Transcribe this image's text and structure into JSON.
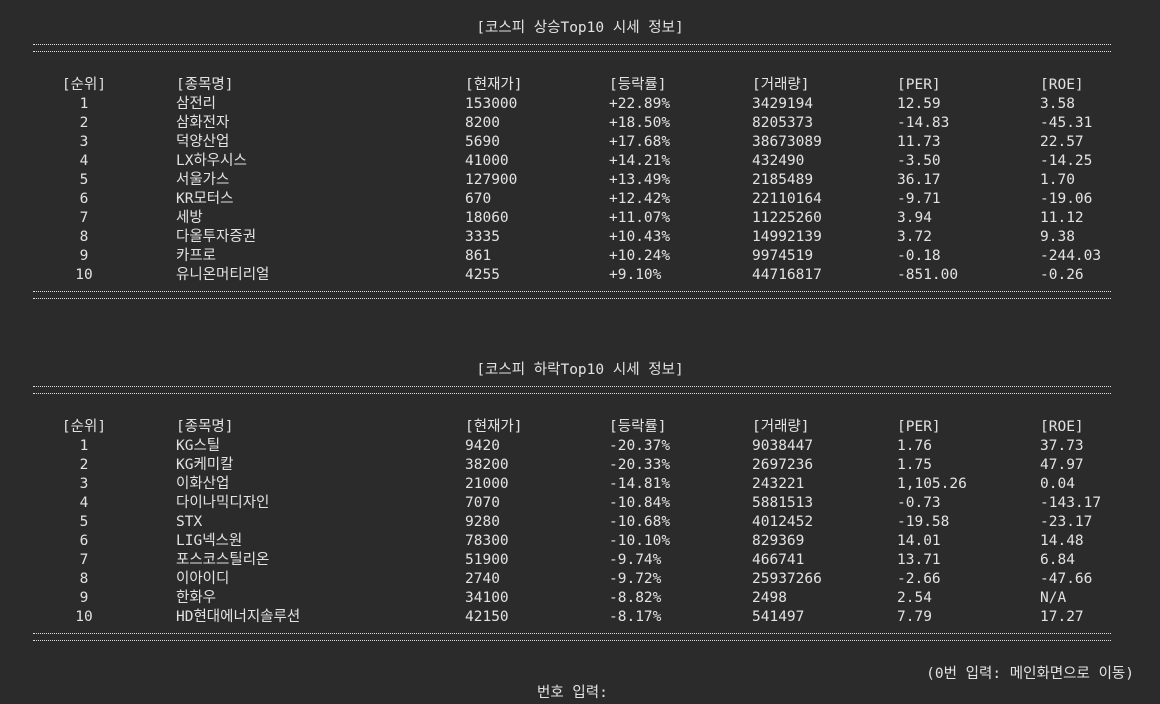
{
  "sections": [
    {
      "title": "[코스피 상승Top10 시세 정보]",
      "headers": {
        "rank": "[순위]",
        "name": "[종목명]",
        "price": "[현재가]",
        "change": "[등락률]",
        "volume": "[거래량]",
        "per": "[PER]",
        "roe": "[ROE]"
      },
      "rows": [
        {
          "rank": "1",
          "name": "삼전리",
          "price": "153000",
          "change": "+22.89%",
          "volume": "3429194",
          "per": "12.59",
          "roe": "3.58"
        },
        {
          "rank": "2",
          "name": "삼화전자",
          "price": "8200",
          "change": "+18.50%",
          "volume": "8205373",
          "per": "-14.83",
          "roe": "-45.31"
        },
        {
          "rank": "3",
          "name": "덕양산업",
          "price": "5690",
          "change": "+17.68%",
          "volume": "38673089",
          "per": "11.73",
          "roe": "22.57"
        },
        {
          "rank": "4",
          "name": "LX하우시스",
          "price": "41000",
          "change": "+14.21%",
          "volume": "432490",
          "per": "-3.50",
          "roe": "-14.25"
        },
        {
          "rank": "5",
          "name": "서울가스",
          "price": "127900",
          "change": "+13.49%",
          "volume": "2185489",
          "per": "36.17",
          "roe": "1.70"
        },
        {
          "rank": "6",
          "name": "KR모터스",
          "price": "670",
          "change": "+12.42%",
          "volume": "22110164",
          "per": "-9.71",
          "roe": "-19.06"
        },
        {
          "rank": "7",
          "name": "세방",
          "price": "18060",
          "change": "+11.07%",
          "volume": "11225260",
          "per": "3.94",
          "roe": "11.12"
        },
        {
          "rank": "8",
          "name": "다올투자증권",
          "price": "3335",
          "change": "+10.43%",
          "volume": "14992139",
          "per": "3.72",
          "roe": "9.38"
        },
        {
          "rank": "9",
          "name": "카프로",
          "price": "861",
          "change": "+10.24%",
          "volume": "9974519",
          "per": "-0.18",
          "roe": "-244.03"
        },
        {
          "rank": "10",
          "name": "유니온머티리얼",
          "price": "4255",
          "change": "+9.10%",
          "volume": "44716817",
          "per": "-851.00",
          "roe": "-0.26"
        }
      ]
    },
    {
      "title": "[코스피 하락Top10 시세 정보]",
      "headers": {
        "rank": "[순위]",
        "name": "[종목명]",
        "price": "[현재가]",
        "change": "[등락률]",
        "volume": "[거래량]",
        "per": "[PER]",
        "roe": "[ROE]"
      },
      "rows": [
        {
          "rank": "1",
          "name": "KG스틸",
          "price": "9420",
          "change": "-20.37%",
          "volume": "9038447",
          "per": "1.76",
          "roe": "37.73"
        },
        {
          "rank": "2",
          "name": "KG케미칼",
          "price": "38200",
          "change": "-20.33%",
          "volume": "2697236",
          "per": "1.75",
          "roe": "47.97"
        },
        {
          "rank": "3",
          "name": "이화산업",
          "price": "21000",
          "change": "-14.81%",
          "volume": "243221",
          "per": "1,105.26",
          "roe": "0.04"
        },
        {
          "rank": "4",
          "name": "다이나믹디자인",
          "price": "7070",
          "change": "-10.84%",
          "volume": "5881513",
          "per": "-0.73",
          "roe": "-143.17"
        },
        {
          "rank": "5",
          "name": "STX",
          "price": "9280",
          "change": "-10.68%",
          "volume": "4012452",
          "per": "-19.58",
          "roe": "-23.17"
        },
        {
          "rank": "6",
          "name": "LIG넥스원",
          "price": "78300",
          "change": "-10.10%",
          "volume": "829369",
          "per": "14.01",
          "roe": "14.48"
        },
        {
          "rank": "7",
          "name": "포스코스틸리온",
          "price": "51900",
          "change": "-9.74%",
          "volume": "466741",
          "per": "13.71",
          "roe": "6.84"
        },
        {
          "rank": "8",
          "name": "이아이디",
          "price": "2740",
          "change": "-9.72%",
          "volume": "25937266",
          "per": "-2.66",
          "roe": "-47.66"
        },
        {
          "rank": "9",
          "name": "한화우",
          "price": "34100",
          "change": "-8.82%",
          "volume": "2498",
          "per": "2.54",
          "roe": "N/A"
        },
        {
          "rank": "10",
          "name": "HD현대에너지솔루션",
          "price": "42150",
          "change": "-8.17%",
          "volume": "541497",
          "per": "7.79",
          "roe": "17.27"
        }
      ]
    }
  ],
  "footer": {
    "hint": "(0번 입력: 메인화면으로 이동)",
    "prompt": "번호 입력:"
  }
}
